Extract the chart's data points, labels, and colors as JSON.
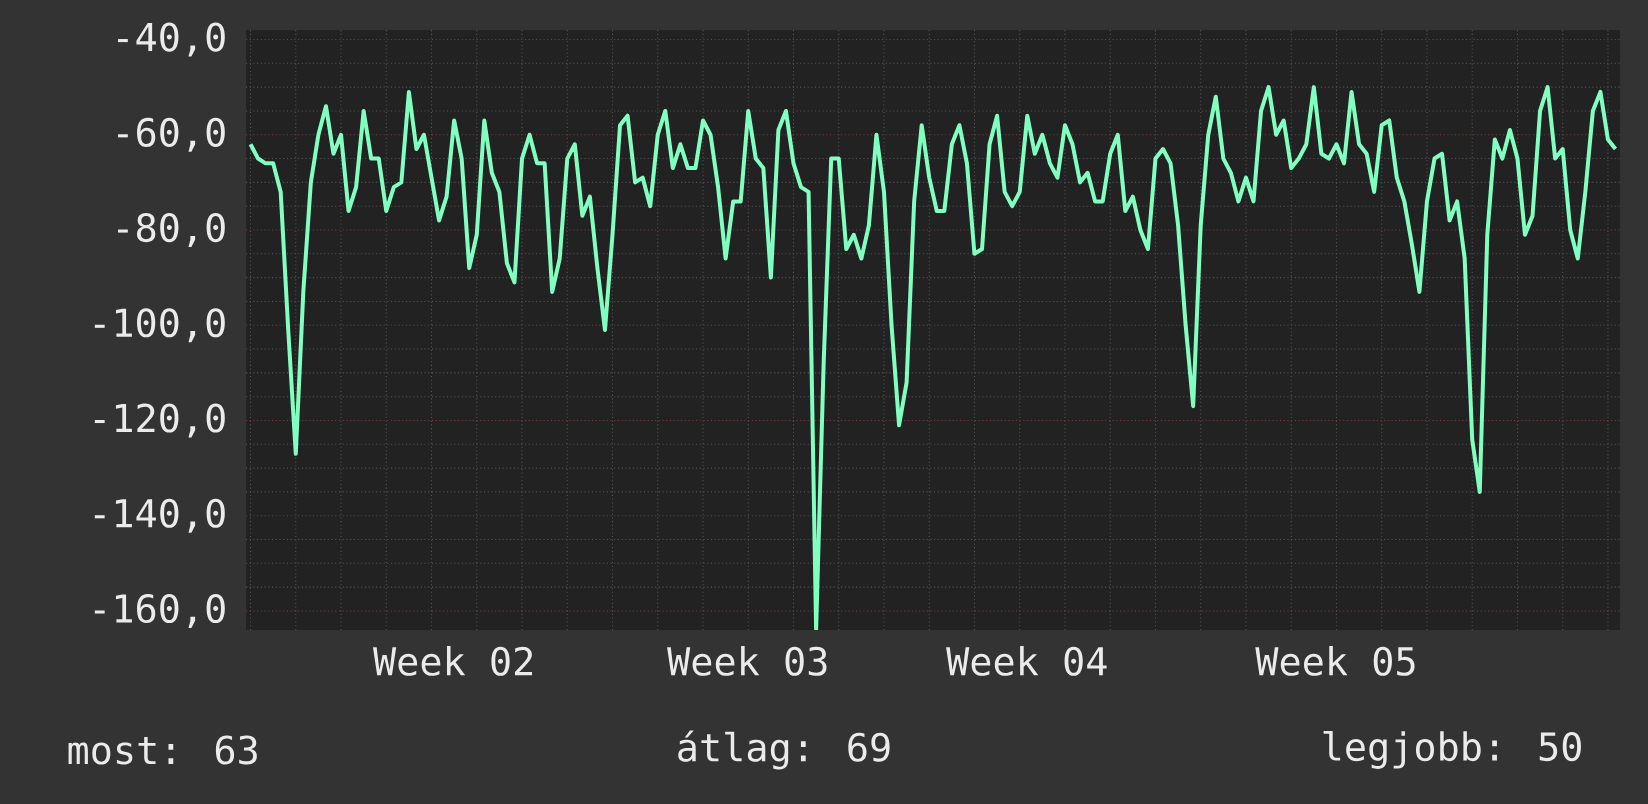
{
  "chart_data": {
    "type": "line",
    "color": "#80ffc0",
    "categories": [
      null,
      null,
      null,
      null,
      null,
      null,
      null,
      null,
      null,
      null,
      null,
      null,
      null,
      null,
      null,
      null,
      null,
      null,
      null,
      null,
      null,
      null,
      null,
      null,
      null,
      null,
      null,
      "Week 02",
      null,
      null,
      null,
      null,
      null,
      null,
      null,
      null,
      null,
      null,
      null,
      null,
      null,
      null,
      null,
      null,
      null,
      null,
      null,
      null,
      null,
      null,
      null,
      null,
      null,
      null,
      null,
      null,
      null,
      null,
      null,
      null,
      null,
      null,
      null,
      null,
      null,
      null,
      "Week 03",
      null,
      null,
      null,
      null,
      null,
      null,
      null,
      null,
      null,
      null,
      null,
      null,
      null,
      null,
      null,
      null,
      null,
      null,
      null,
      null,
      null,
      null,
      null,
      null,
      null,
      null,
      null,
      null,
      null,
      null,
      null,
      null,
      null,
      null,
      null,
      null,
      "Week 04",
      null,
      null,
      null,
      null,
      null,
      null,
      null,
      null,
      null,
      null,
      null,
      null,
      null,
      null,
      null,
      null,
      null,
      null,
      null,
      null,
      null,
      null,
      null,
      null,
      null,
      null,
      null,
      null,
      null,
      null,
      null,
      null,
      null,
      null,
      null,
      null,
      null,
      null,
      null,
      null,
      "Week 05",
      null,
      null,
      null,
      null,
      null,
      null,
      null,
      null,
      null,
      null,
      null,
      null,
      null,
      null,
      null,
      null,
      null,
      null,
      null,
      null,
      null,
      null,
      null,
      null,
      null,
      null,
      null,
      null,
      null,
      null,
      null,
      null,
      null,
      null,
      null,
      null,
      null
    ],
    "values": [
      -62,
      -65,
      -66,
      -66,
      -72,
      -101,
      -127,
      -93,
      -70,
      -60,
      -54,
      -64,
      -60,
      -76,
      -71,
      -55,
      -65,
      -65,
      -76,
      -71,
      -70,
      -51,
      -63,
      -60,
      -69,
      -78,
      -73,
      -57,
      -65,
      -88,
      -81,
      -57,
      -68,
      -72,
      -87,
      -91,
      -65,
      -60,
      -66,
      -66,
      -93,
      -86,
      -65,
      -62,
      -77,
      -73,
      -88,
      -101,
      -81,
      -58,
      -56,
      -70,
      -69,
      -75,
      -60,
      -55,
      -67,
      -62,
      -67,
      -67,
      -57,
      -60,
      -71,
      -86,
      -74,
      -74,
      -55,
      -65,
      -67,
      -90,
      -59,
      -55,
      -66,
      -71,
      -72,
      -164,
      -108,
      -65,
      -65,
      -84,
      -81,
      -86,
      -79,
      -60,
      -72,
      -100,
      -121,
      -112,
      -74,
      -58,
      -69,
      -76,
      -76,
      -62,
      -58,
      -66,
      -85,
      -84,
      -62,
      -56,
      -72,
      -75,
      -72,
      -56,
      -64,
      -60,
      -66,
      -69,
      -58,
      -62,
      -70,
      -68,
      -74,
      -74,
      -64,
      -60,
      -76,
      -73,
      -80,
      -84,
      -65,
      -63,
      -66,
      -79,
      -100,
      -117,
      -79,
      -60,
      -52,
      -65,
      -68,
      -74,
      -69,
      -74,
      -55,
      -50,
      -60,
      -57,
      -67,
      -65,
      -62,
      -50,
      -64,
      -65,
      -62,
      -66,
      -51,
      -62,
      -64,
      -72,
      -58,
      -57,
      -69,
      -74,
      -83,
      -93,
      -74,
      -65,
      -64,
      -78,
      -74,
      -86,
      -124,
      -135,
      -81,
      -61,
      -65,
      -59,
      -65,
      -81,
      -77,
      -55,
      -50,
      -65,
      -63,
      -80,
      -86,
      -72,
      -55,
      -51,
      -61,
      -63
    ],
    "ylim": [
      -164,
      -38
    ],
    "yticks": [
      {
        "value": -40,
        "label": "-40,0"
      },
      {
        "value": -60,
        "label": "-60,0"
      },
      {
        "value": -80,
        "label": "-80,0"
      },
      {
        "value": -100,
        "label": "-100,0"
      },
      {
        "value": -120,
        "label": "-120,0"
      },
      {
        "value": -140,
        "label": "-140,0"
      },
      {
        "value": -160,
        "label": "-160,0"
      }
    ],
    "grid": true,
    "annotations": [
      "most: 63",
      "átlag: 69",
      "legjobb: 50"
    ]
  }
}
